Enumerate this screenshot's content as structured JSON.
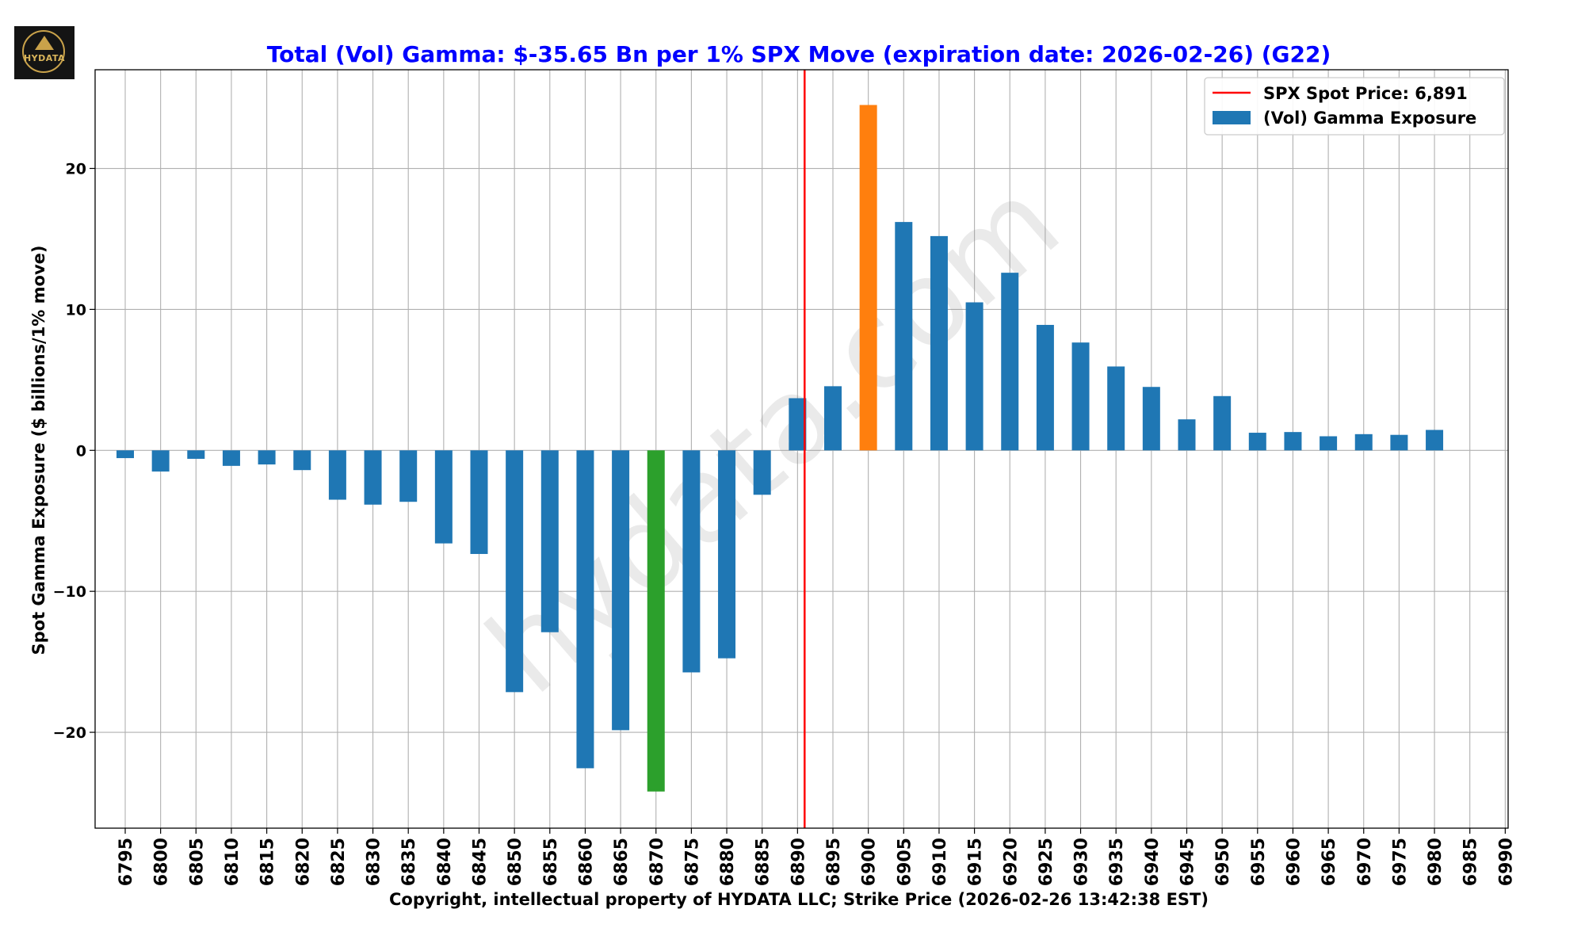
{
  "logo": {
    "text": "HYDATA"
  },
  "watermark": "hydata.com",
  "colors": {
    "title": "#0000ff",
    "bar_default": "#1f77b4",
    "bar_max": "#ff7f0e",
    "bar_min": "#2ca02c",
    "spot_line": "#ff0000",
    "grid": "#b0b0b0"
  },
  "chart_data": {
    "type": "bar",
    "title": "Total (Vol) Gamma: $-35.65 Bn per 1% SPX Move (expiration date: 2026-02-26) (G22)",
    "xlabel": "Copyright, intellectual property of HYDATA LLC; Strike Price (2026-02-26 13:42:38 EST)",
    "ylabel": "Spot Gamma Exposure ($ billions/1% move)",
    "ylim": [
      -26.8,
      27.0
    ],
    "yticks": [
      -20,
      -10,
      0,
      10,
      20
    ],
    "ytick_labels": [
      "−20",
      "−10",
      "0",
      "10",
      "20"
    ],
    "grid": true,
    "legend_position": "top-right",
    "legend": [
      {
        "type": "line",
        "label": "SPX Spot Price: 6,891"
      },
      {
        "type": "bar",
        "label": "(Vol) Gamma Exposure"
      }
    ],
    "spot_price": 6891,
    "categories": [
      "6795",
      "6800",
      "6805",
      "6810",
      "6815",
      "6820",
      "6825",
      "6830",
      "6835",
      "6840",
      "6845",
      "6850",
      "6855",
      "6860",
      "6865",
      "6870",
      "6875",
      "6880",
      "6885",
      "6890",
      "6895",
      "6900",
      "6905",
      "6910",
      "6915",
      "6920",
      "6925",
      "6930",
      "6935",
      "6940",
      "6945",
      "6950",
      "6955",
      "6960",
      "6965",
      "6970",
      "6975",
      "6980",
      "6985",
      "6990"
    ],
    "series": [
      {
        "name": "(Vol) Gamma Exposure",
        "values": [
          -0.55,
          -1.5,
          -0.6,
          -1.1,
          -1.0,
          -1.4,
          -3.5,
          -3.85,
          -3.65,
          -6.6,
          -7.35,
          -17.15,
          -12.9,
          -22.55,
          -19.85,
          -24.2,
          -15.75,
          -14.75,
          -3.15,
          3.7,
          4.55,
          24.5,
          16.2,
          15.2,
          10.5,
          12.6,
          8.9,
          7.65,
          5.95,
          4.5,
          2.2,
          3.85,
          1.25,
          1.3,
          1.0,
          1.15,
          1.1,
          1.45,
          0,
          0
        ]
      }
    ],
    "highlight": {
      "max_index": 21,
      "min_index": 15
    }
  }
}
